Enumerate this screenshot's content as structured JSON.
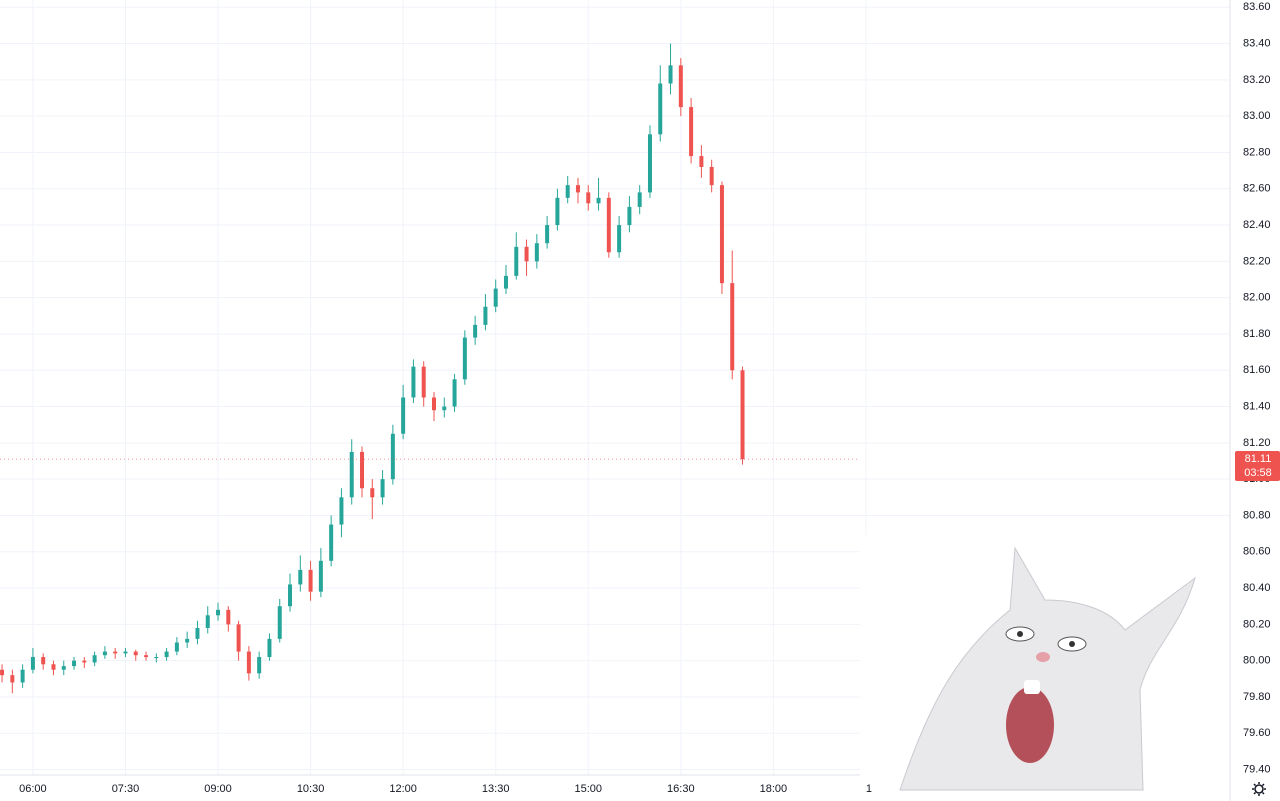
{
  "chart_data": {
    "type": "candlestick",
    "up_color": "#26a69a",
    "down_color": "#ef5350",
    "grid": true,
    "x": [
      330,
      340,
      350,
      360,
      370,
      380,
      390,
      400,
      410,
      420,
      430,
      440,
      450,
      460,
      470,
      480,
      490,
      500,
      510,
      520,
      530,
      540,
      550,
      560,
      570,
      580,
      590,
      600,
      610,
      620,
      630,
      640,
      650,
      660,
      670,
      680,
      690,
      700,
      710,
      720,
      730,
      740,
      750,
      760,
      770,
      780,
      790,
      800,
      810,
      820,
      830,
      840,
      850,
      860,
      870,
      880,
      890,
      900,
      910,
      920,
      930,
      940,
      950,
      960,
      970,
      980,
      990,
      1000,
      1010,
      1020,
      1030,
      1040,
      1050
    ],
    "open": [
      79.95,
      79.92,
      79.88,
      79.95,
      80.02,
      79.98,
      79.95,
      79.97,
      80.0,
      79.99,
      80.03,
      80.05,
      80.04,
      80.05,
      80.03,
      80.02,
      80.02,
      80.05,
      80.1,
      80.12,
      80.18,
      80.25,
      80.28,
      80.2,
      80.05,
      79.93,
      80.02,
      80.12,
      80.3,
      80.42,
      80.5,
      80.38,
      80.55,
      80.75,
      80.9,
      81.15,
      80.95,
      80.9,
      81.0,
      81.25,
      81.45,
      81.62,
      81.45,
      81.38,
      81.4,
      81.55,
      81.78,
      81.85,
      81.95,
      82.05,
      82.12,
      82.28,
      82.2,
      82.3,
      82.4,
      82.55,
      82.62,
      82.58,
      82.52,
      82.55,
      82.25,
      82.4,
      82.5,
      82.58,
      82.9,
      83.18,
      83.28,
      83.05,
      82.78,
      82.72,
      82.62,
      82.08,
      81.6
    ],
    "high": [
      79.98,
      79.95,
      79.98,
      80.07,
      80.04,
      80.0,
      80.0,
      80.02,
      80.02,
      80.05,
      80.08,
      80.07,
      80.07,
      80.06,
      80.05,
      80.04,
      80.07,
      80.13,
      80.16,
      80.22,
      80.3,
      80.32,
      80.3,
      80.22,
      80.08,
      80.05,
      80.15,
      80.34,
      80.48,
      80.58,
      80.55,
      80.62,
      80.8,
      80.95,
      81.22,
      81.18,
      81.0,
      81.05,
      81.3,
      81.52,
      81.66,
      81.65,
      81.48,
      81.45,
      81.58,
      81.82,
      81.9,
      82.02,
      82.1,
      82.18,
      82.36,
      82.32,
      82.35,
      82.45,
      82.6,
      82.67,
      82.66,
      82.62,
      82.66,
      82.58,
      82.45,
      82.56,
      82.62,
      82.95,
      83.28,
      83.4,
      83.32,
      83.1,
      82.84,
      82.76,
      82.64,
      82.26,
      81.62
    ],
    "low": [
      79.88,
      79.82,
      79.85,
      79.93,
      79.95,
      79.92,
      79.92,
      79.95,
      79.96,
      79.97,
      80.01,
      80.01,
      80.02,
      80.0,
      80.0,
      79.99,
      80.0,
      80.03,
      80.07,
      80.09,
      80.15,
      80.22,
      80.16,
      80.0,
      79.89,
      79.9,
      80.0,
      80.1,
      80.27,
      80.38,
      80.33,
      80.35,
      80.52,
      80.68,
      80.86,
      80.9,
      80.78,
      80.86,
      80.97,
      81.22,
      81.42,
      81.4,
      81.32,
      81.34,
      81.37,
      81.52,
      81.74,
      81.82,
      81.92,
      82.02,
      82.1,
      82.12,
      82.16,
      82.27,
      82.37,
      82.52,
      82.52,
      82.48,
      82.48,
      82.22,
      82.22,
      82.36,
      82.46,
      82.55,
      82.86,
      83.12,
      83.0,
      82.74,
      82.66,
      82.58,
      82.02,
      81.55,
      81.08
    ],
    "close": [
      79.92,
      79.88,
      79.95,
      80.02,
      79.98,
      79.95,
      79.97,
      80.0,
      79.99,
      80.03,
      80.05,
      80.04,
      80.05,
      80.03,
      80.02,
      80.02,
      80.05,
      80.1,
      80.12,
      80.18,
      80.25,
      80.28,
      80.2,
      80.05,
      79.93,
      80.02,
      80.12,
      80.3,
      80.42,
      80.5,
      80.38,
      80.55,
      80.75,
      80.9,
      81.15,
      80.95,
      80.9,
      81.0,
      81.25,
      81.45,
      81.62,
      81.45,
      81.38,
      81.4,
      81.55,
      81.78,
      81.85,
      81.95,
      82.05,
      82.12,
      82.28,
      82.2,
      82.3,
      82.4,
      82.55,
      82.62,
      82.58,
      82.52,
      82.55,
      82.25,
      82.4,
      82.5,
      82.58,
      82.9,
      83.18,
      83.28,
      83.05,
      82.78,
      82.72,
      82.62,
      82.08,
      81.6,
      81.11
    ],
    "xlim": [
      328,
      1524
    ],
    "xticks": [
      {
        "value": 360,
        "label": "06:00"
      },
      {
        "value": 450,
        "label": "07:30"
      },
      {
        "value": 540,
        "label": "09:00"
      },
      {
        "value": 630,
        "label": "10:30"
      },
      {
        "value": 720,
        "label": "12:00"
      },
      {
        "value": 810,
        "label": "13:30"
      },
      {
        "value": 900,
        "label": "15:00"
      },
      {
        "value": 990,
        "label": "16:30"
      },
      {
        "value": 1080,
        "label": "18:00"
      },
      {
        "value": 1170,
        "label": "1"
      }
    ],
    "ylim": [
      79.37,
      83.64
    ],
    "yticks": [
      {
        "value": 79.4,
        "label": "79.40"
      },
      {
        "value": 79.6,
        "label": "79.60"
      },
      {
        "value": 79.8,
        "label": "79.80"
      },
      {
        "value": 80.0,
        "label": "80.00"
      },
      {
        "value": 80.2,
        "label": "80.20"
      },
      {
        "value": 80.4,
        "label": "80.40"
      },
      {
        "value": 80.6,
        "label": "80.60"
      },
      {
        "value": 80.8,
        "label": "80.80"
      },
      {
        "value": 81.0,
        "label": "81.00"
      },
      {
        "value": 81.2,
        "label": "81.20"
      },
      {
        "value": 81.4,
        "label": "81.40"
      },
      {
        "value": 81.6,
        "label": "81.60"
      },
      {
        "value": 81.8,
        "label": "81.80"
      },
      {
        "value": 82.0,
        "label": "82.00"
      },
      {
        "value": 82.2,
        "label": "82.20"
      },
      {
        "value": 82.4,
        "label": "82.40"
      },
      {
        "value": 82.6,
        "label": "82.60"
      },
      {
        "value": 82.8,
        "label": "82.80"
      },
      {
        "value": 83.0,
        "label": "83.00"
      },
      {
        "value": 83.2,
        "label": "83.20"
      },
      {
        "value": 83.4,
        "label": "83.40"
      },
      {
        "value": 83.6,
        "label": "83.60"
      }
    ],
    "last_price": 81.11,
    "countdown": "03:58"
  }
}
